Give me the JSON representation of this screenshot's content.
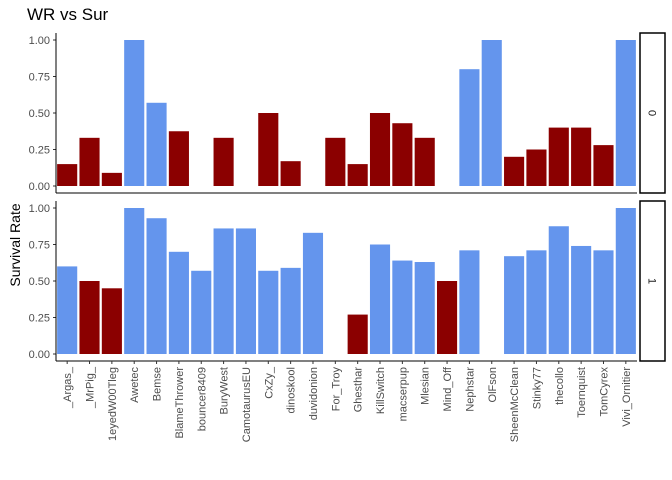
{
  "chart_data": {
    "type": "bar",
    "title": "WR vs Sur",
    "xlabel": "",
    "ylabel": "Survival Rate",
    "ylim": [
      0,
      1.0
    ],
    "yticks": [
      "0.00",
      "0.25",
      "0.50",
      "0.75",
      "1.00"
    ],
    "categories": [
      "_Argas_",
      "_MrPig_",
      "1eyedW00Tleg",
      "Awetec",
      "Bemse",
      "BlameThrower",
      "bouncer8409",
      "BuryWest",
      "CamotaurusEU",
      "CxZy_",
      "dinoskool",
      "duvidonion",
      "For_Troy",
      "Ghesthar",
      "KillSwitch",
      "macserpup",
      "Mlesian",
      "Mind_Off",
      "Nephstar",
      "OlFson",
      "SheenMcClean",
      "Stinky77",
      "thecollo",
      "Toernquist",
      "TomCyrex",
      "Vivi_Ornitier"
    ],
    "colors": {
      "low": "#8B0000",
      "high": "#6495ED"
    },
    "facets": [
      {
        "label": "0",
        "values": [
          0.15,
          0.33,
          0.09,
          1.0,
          0.57,
          0.375,
          null,
          0.33,
          null,
          0.5,
          0.17,
          null,
          0.33,
          0.15,
          0.5,
          0.43,
          0.33,
          null,
          0.8,
          1.0,
          0.2,
          0.25,
          0.4,
          0.4,
          0.28,
          1.0
        ],
        "groups": [
          "low",
          "low",
          "low",
          "high",
          "high",
          "low",
          null,
          "low",
          null,
          "low",
          "low",
          null,
          "low",
          "low",
          "low",
          "low",
          "low",
          null,
          "high",
          "high",
          "low",
          "low",
          "low",
          "low",
          "low",
          "high"
        ]
      },
      {
        "label": "1",
        "values": [
          0.6,
          0.5,
          0.45,
          1.0,
          0.93,
          0.7,
          0.57,
          0.86,
          0.86,
          0.57,
          0.59,
          0.83,
          null,
          0.27,
          0.75,
          0.64,
          0.63,
          0.5,
          0.71,
          null,
          0.67,
          0.71,
          0.875,
          0.74,
          0.71,
          1.0
        ],
        "groups": [
          "high",
          "low",
          "low",
          "high",
          "high",
          "high",
          "high",
          "high",
          "high",
          "high",
          "high",
          "high",
          null,
          "low",
          "high",
          "high",
          "high",
          "low",
          "high",
          null,
          "high",
          "high",
          "high",
          "high",
          "high",
          "high"
        ]
      }
    ]
  }
}
